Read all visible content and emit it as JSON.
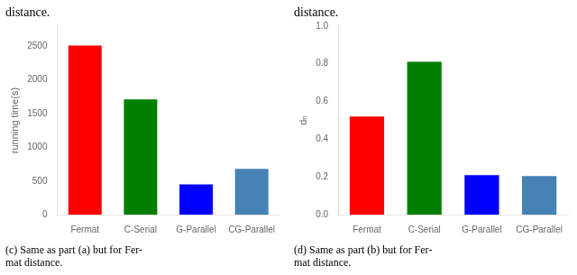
{
  "chart_data": [
    {
      "type": "bar",
      "title": "distance.",
      "annotations": [
        "(c) Same as part (a) but for Fer-\nmat distance."
      ],
      "categories": [
        "Fermat",
        "C-Serial",
        "G-Parallel",
        "CG-Parallel"
      ],
      "values": [
        2510,
        1710,
        450,
        680
      ],
      "colors": [
        "#ff0000",
        "#008000",
        "#0000ff",
        "#4682b4"
      ],
      "y_label": "running time(s)",
      "ylim": [
        0,
        2800
      ],
      "yticks": [
        0,
        500,
        1000,
        1500,
        2000,
        2500
      ],
      "grid": false
    },
    {
      "type": "bar",
      "title": "distance.",
      "annotations": [
        "(d) Same as part (b) but for Fer-\nmat distance."
      ],
      "categories": [
        "Fermat",
        "C-Serial",
        "G-Parallel",
        "CG-Parallel"
      ],
      "values": [
        0.52,
        0.81,
        0.21,
        0.205
      ],
      "colors": [
        "#ff0000",
        "#008000",
        "#0000ff",
        "#4682b4"
      ],
      "y_label": "dₙ",
      "ylim": [
        0.0,
        1.0
      ],
      "yticks": [
        {
          "value": 0.0,
          "label": "0.0"
        },
        0.2,
        0.4,
        0.6,
        0.8,
        {
          "value": 1.0,
          "label": "1.0"
        }
      ],
      "grid": false
    }
  ]
}
